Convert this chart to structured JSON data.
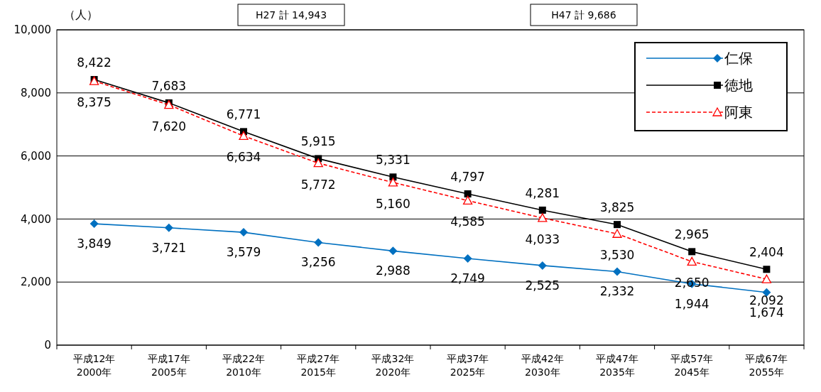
{
  "chart_data": {
    "type": "line",
    "ylabel": "（人）",
    "categories": [
      "平成12年\n2000年",
      "平成17年\n2005年",
      "平成22年\n2010年",
      "平成27年\n2015年",
      "平成32年\n2020年",
      "平成37年\n2025年",
      "平成42年\n2030年",
      "平成47年\n2035年",
      "平成57年\n2045年",
      "平成67年\n2055年"
    ],
    "series": [
      {
        "name": "仁保",
        "color": "#0070c0",
        "marker": "diamond",
        "line_style": "solid",
        "values": [
          3849,
          3721,
          3579,
          3256,
          2988,
          2749,
          2525,
          2332,
          1944,
          1674
        ],
        "value_labels": [
          "3,849",
          "3,721",
          "3,579",
          "3,256",
          "2,988",
          "2,749",
          "2,525",
          "2,332",
          "1,944",
          "1,674"
        ]
      },
      {
        "name": "徳地",
        "color": "#000000",
        "marker": "square",
        "line_style": "solid",
        "values": [
          8422,
          7683,
          6771,
          5915,
          5331,
          4797,
          4281,
          3825,
          2965,
          2404
        ],
        "value_labels": [
          "8,422",
          "7,683",
          "6,771",
          "5,915",
          "5,331",
          "4,797",
          "4,281",
          "3,825",
          "2,965",
          "2,404"
        ]
      },
      {
        "name": "阿東",
        "color": "#ff0000",
        "marker": "triangle",
        "line_style": "dashed",
        "values": [
          8375,
          7620,
          6634,
          5772,
          5160,
          4585,
          4033,
          3530,
          2650,
          2092
        ],
        "value_labels": [
          "8,375",
          "7,620",
          "6,634",
          "5,772",
          "5,160",
          "4,585",
          "4,033",
          "3,530",
          "2,650",
          "2,092"
        ]
      }
    ],
    "ylim": [
      0,
      10000
    ],
    "yticks": [
      {
        "value": 0,
        "label": "0"
      },
      {
        "value": 2000,
        "label": "2,000"
      },
      {
        "value": 4000,
        "label": "4,000"
      },
      {
        "value": 6000,
        "label": "6,000"
      },
      {
        "value": 8000,
        "label": "8,000"
      },
      {
        "value": 10000,
        "label": "10,000"
      }
    ],
    "grid": "y",
    "legend": "top right",
    "annotations": [
      "H27 計 14,943",
      "H47 計 9,686"
    ]
  }
}
